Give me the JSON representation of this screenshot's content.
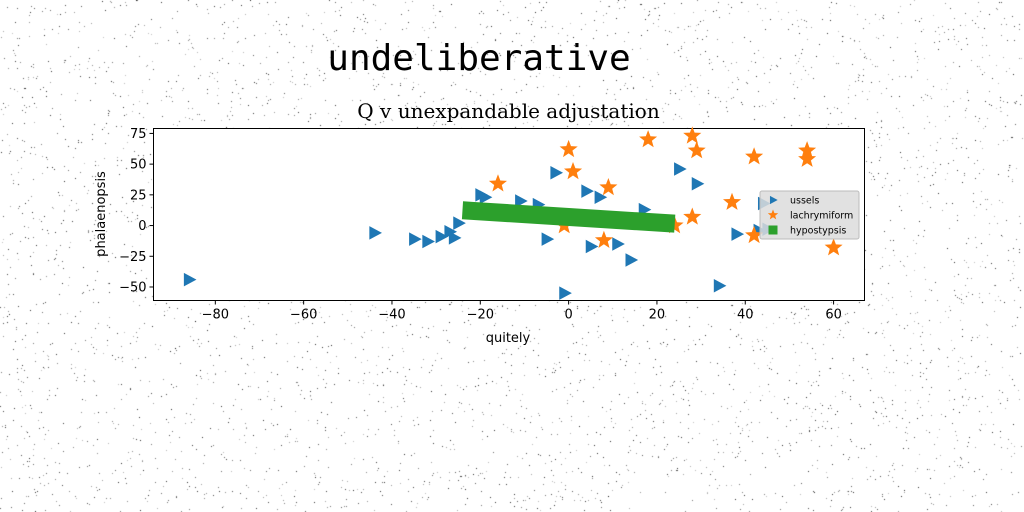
{
  "suptitle": "undeliberative",
  "chart_data": {
    "type": "scatter",
    "title": "Q v unexpandable adjustation",
    "xlabel": "quitely",
    "ylabel": "phalaenopsis",
    "xlim": [
      -94,
      67
    ],
    "ylim": [
      -61,
      79
    ],
    "xticks": [
      -80,
      -60,
      -40,
      -20,
      0,
      20,
      40,
      60
    ],
    "yticks": [
      -50,
      -25,
      0,
      25,
      50,
      75
    ],
    "grid": false,
    "legend_position": "right",
    "series": [
      {
        "name": "ussels",
        "marker": "triangle-right",
        "color": "#1f77b4",
        "points": [
          [
            -86,
            -44
          ],
          [
            -44,
            -6
          ],
          [
            -35,
            -11
          ],
          [
            -32,
            -13
          ],
          [
            -29,
            -9
          ],
          [
            -27,
            -5
          ],
          [
            -26,
            -10
          ],
          [
            -25,
            2
          ],
          [
            -20,
            25
          ],
          [
            -19,
            23
          ],
          [
            -11,
            20
          ],
          [
            -7,
            17
          ],
          [
            -5,
            -11
          ],
          [
            -3,
            43
          ],
          [
            -1,
            -55
          ],
          [
            4,
            28
          ],
          [
            5,
            -17
          ],
          [
            7,
            23
          ],
          [
            11,
            -15
          ],
          [
            14,
            -28
          ],
          [
            17,
            13
          ],
          [
            25,
            46
          ],
          [
            29,
            34
          ],
          [
            34,
            -49
          ],
          [
            38,
            -7
          ],
          [
            43,
            -4
          ],
          [
            44,
            18
          ],
          [
            45,
            -3
          ]
        ]
      },
      {
        "name": "lachrymiform",
        "marker": "star",
        "color": "#ff7f0e",
        "points": [
          [
            -16,
            34
          ],
          [
            0,
            62
          ],
          [
            1,
            44
          ],
          [
            8,
            -12
          ],
          [
            9,
            31
          ],
          [
            18,
            70
          ],
          [
            24,
            0
          ],
          [
            28,
            73
          ],
          [
            28,
            7
          ],
          [
            29,
            61
          ],
          [
            37,
            19
          ],
          [
            42,
            56
          ],
          [
            42,
            -8
          ],
          [
            54,
            61
          ],
          [
            54,
            54
          ],
          [
            60,
            -18
          ],
          [
            -1,
            0
          ]
        ]
      },
      {
        "name": "hypostypsis",
        "marker": "square",
        "color": "#2ca02c",
        "line": {
          "x0": -22,
          "x1": 22,
          "y0": 12,
          "y1": 2
        }
      }
    ]
  }
}
